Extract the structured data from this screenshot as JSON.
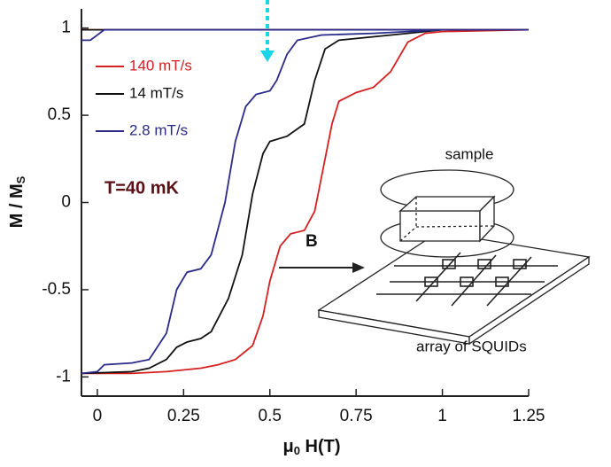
{
  "chart_data": {
    "type": "line",
    "xlabel": [
      "μ",
      "0",
      " H(T)"
    ],
    "ylabel": [
      "M / M",
      "S"
    ],
    "annotation": "T=40  mK",
    "xlim": [
      -0.046,
      1.25
    ],
    "ylim": [
      -1.11,
      1.11
    ],
    "xticks": [
      0,
      0.25,
      0.5,
      0.75,
      1,
      1.25
    ],
    "yticks": [
      -1,
      -0.5,
      0,
      0.5,
      1
    ],
    "series": [
      {
        "name": "140  mT/s",
        "color": "#d42020",
        "x": [
          -0.046,
          0.1,
          0.2,
          0.3,
          0.35,
          0.4,
          0.45,
          0.48,
          0.5,
          0.53,
          0.56,
          0.6,
          0.63,
          0.65,
          0.68,
          0.7,
          0.75,
          0.8,
          0.85,
          0.9,
          0.95,
          1.0,
          1.25,
          null,
          -0.046,
          1.25
        ],
        "values": [
          -0.98,
          -0.98,
          -0.97,
          -0.95,
          -0.93,
          -0.9,
          -0.82,
          -0.65,
          -0.45,
          -0.25,
          -0.18,
          -0.16,
          -0.05,
          0.15,
          0.45,
          0.58,
          0.63,
          0.66,
          0.75,
          0.92,
          0.97,
          0.98,
          0.99,
          null,
          0.99,
          0.99
        ]
      },
      {
        "name": "14  mT/s",
        "color": "#111111",
        "x": [
          -0.046,
          0.1,
          0.15,
          0.2,
          0.23,
          0.26,
          0.3,
          0.33,
          0.38,
          0.42,
          0.45,
          0.48,
          0.5,
          0.55,
          0.6,
          0.63,
          0.66,
          0.7,
          0.8,
          0.9,
          1.0,
          1.25,
          null,
          -0.046,
          1.25
        ],
        "values": [
          -0.98,
          -0.97,
          -0.95,
          -0.9,
          -0.83,
          -0.8,
          -0.78,
          -0.74,
          -0.55,
          -0.3,
          0.05,
          0.28,
          0.35,
          0.38,
          0.45,
          0.7,
          0.88,
          0.93,
          0.95,
          0.97,
          0.99,
          0.99,
          null,
          0.99,
          0.99
        ]
      },
      {
        "name": "2.8  mT/s",
        "color": "#2a2a8a",
        "x": [
          -0.046,
          0,
          0.02,
          0.1,
          0.15,
          0.2,
          0.23,
          0.26,
          0.3,
          0.33,
          0.37,
          0.4,
          0.43,
          0.46,
          0.5,
          0.52,
          0.55,
          0.58,
          0.65,
          0.8,
          0.9,
          1.0,
          1.25,
          null,
          -0.046,
          -0.02,
          0.02,
          1.25
        ],
        "values": [
          -0.98,
          -0.97,
          -0.93,
          -0.92,
          -0.9,
          -0.75,
          -0.5,
          -0.4,
          -0.38,
          -0.3,
          0,
          0.35,
          0.55,
          0.62,
          0.64,
          0.7,
          0.85,
          0.93,
          0.96,
          0.97,
          0.98,
          0.99,
          0.99,
          null,
          0.93,
          0.93,
          0.99,
          0.99
        ]
      }
    ],
    "inset": {
      "sample": "sample",
      "field": "B",
      "array": "array of SQUIDs"
    }
  }
}
